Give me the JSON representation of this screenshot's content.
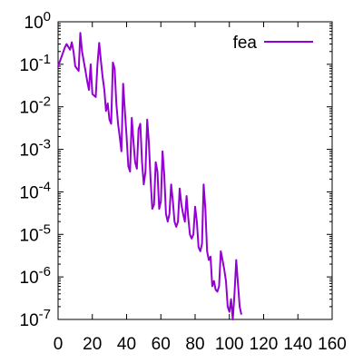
{
  "chart_data": {
    "type": "line",
    "title": "",
    "xlabel": "",
    "ylabel": "",
    "x_scale": "linear",
    "y_scale": "log",
    "xlim": [
      0,
      160
    ],
    "ylim": [
      1e-07,
      1
    ],
    "x_ticks": [
      "0",
      "20",
      "40",
      "60",
      "80",
      "100",
      "120",
      "140",
      "160"
    ],
    "y_ticks": [
      {
        "base": "10",
        "exp": "0",
        "value": 1
      },
      {
        "base": "10",
        "exp": "-1",
        "value": 0.1
      },
      {
        "base": "10",
        "exp": "-2",
        "value": 0.01
      },
      {
        "base": "10",
        "exp": "-3",
        "value": 0.001
      },
      {
        "base": "10",
        "exp": "-4",
        "value": 0.0001
      },
      {
        "base": "10",
        "exp": "-5",
        "value": 1e-05
      },
      {
        "base": "10",
        "exp": "-6",
        "value": 1e-06
      },
      {
        "base": "10",
        "exp": "-7",
        "value": 1e-07
      }
    ],
    "grid": false,
    "legend": {
      "position": "top-right"
    },
    "series": [
      {
        "name": "fea",
        "color": "#9400d3",
        "points": [
          [
            0,
            0.09
          ],
          [
            2,
            0.15
          ],
          [
            4,
            0.25
          ],
          [
            5,
            0.3
          ],
          [
            7,
            0.22
          ],
          [
            8,
            0.33
          ],
          [
            9,
            0.2
          ],
          [
            10,
            0.09
          ],
          [
            12,
            0.07
          ],
          [
            13,
            0.55
          ],
          [
            14,
            0.2
          ],
          [
            16,
            0.07
          ],
          [
            17,
            0.04
          ],
          [
            18,
            0.025
          ],
          [
            19,
            0.1
          ],
          [
            20,
            0.02
          ],
          [
            22,
            0.017
          ],
          [
            23,
            0.1
          ],
          [
            24,
            0.32
          ],
          [
            25,
            0.12
          ],
          [
            26,
            0.05
          ],
          [
            27,
            0.025
          ],
          [
            28,
            0.008
          ],
          [
            29,
            0.012
          ],
          [
            30,
            0.005
          ],
          [
            31,
            0.004
          ],
          [
            32,
            0.11
          ],
          [
            33,
            0.08
          ],
          [
            34,
            0.012
          ],
          [
            35,
            0.004
          ],
          [
            36,
            0.002
          ],
          [
            37,
            0.0009
          ],
          [
            38,
            0.035
          ],
          [
            39,
            0.008
          ],
          [
            40,
            0.002
          ],
          [
            41,
            0.0004
          ],
          [
            42,
            0.0003
          ],
          [
            43,
            0.0055
          ],
          [
            44,
            0.0015
          ],
          [
            45,
            0.0005
          ],
          [
            46,
            0.00035
          ],
          [
            47,
            0.003
          ],
          [
            48,
            0.004
          ],
          [
            49,
            0.0005
          ],
          [
            50,
            0.00015
          ],
          [
            51,
            0.0003
          ],
          [
            52,
            0.005
          ],
          [
            53,
            0.0015
          ],
          [
            54,
            0.0002
          ],
          [
            55,
            4e-05
          ],
          [
            56,
            5e-05
          ],
          [
            57,
            0.0005
          ],
          [
            58,
            0.0003
          ],
          [
            59,
            4e-05
          ],
          [
            60,
            6e-05
          ],
          [
            61,
            0.0009
          ],
          [
            62,
            0.00025
          ],
          [
            63,
            3e-05
          ],
          [
            64,
            2e-05
          ],
          [
            65,
            3e-05
          ],
          [
            66,
            0.00015
          ],
          [
            67,
            6e-05
          ],
          [
            68,
            2e-05
          ],
          [
            69,
            1.5e-05
          ],
          [
            70,
            2e-05
          ],
          [
            71,
            0.00012
          ],
          [
            72,
            5e-05
          ],
          [
            73,
            3e-05
          ],
          [
            74,
            2e-05
          ],
          [
            75,
            8e-05
          ],
          [
            76,
            2.5e-05
          ],
          [
            77,
            1e-05
          ],
          [
            78,
            8e-06
          ],
          [
            79,
            1e-05
          ],
          [
            80,
            4.5e-05
          ],
          [
            81,
            2e-05
          ],
          [
            82,
            5e-06
          ],
          [
            83,
            4e-06
          ],
          [
            84,
            6e-06
          ],
          [
            85,
            0.00015
          ],
          [
            86,
            4e-05
          ],
          [
            87,
            4e-06
          ],
          [
            88,
            2.5e-06
          ],
          [
            89,
            3e-06
          ],
          [
            90,
            6e-07
          ],
          [
            91,
            8e-07
          ],
          [
            92,
            5e-07
          ],
          [
            93,
            4.5e-07
          ],
          [
            94,
            6e-07
          ],
          [
            95,
            4e-06
          ],
          [
            96,
            2.5e-06
          ],
          [
            97,
            1.5e-06
          ],
          [
            98,
            8e-07
          ],
          [
            99,
            2e-07
          ],
          [
            100,
            1.5e-07
          ],
          [
            101,
            3e-07
          ],
          [
            102,
            1e-07
          ],
          [
            103,
            4e-07
          ],
          [
            104,
            2.5e-06
          ],
          [
            105,
            7e-07
          ],
          [
            106,
            2e-07
          ],
          [
            107,
            1.3e-07
          ]
        ]
      }
    ]
  }
}
